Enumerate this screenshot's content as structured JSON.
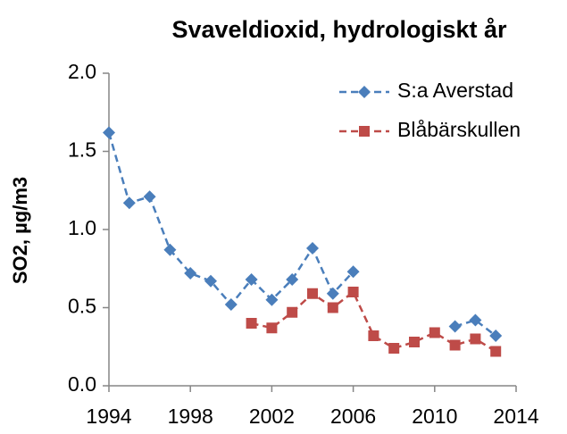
{
  "chart_data": {
    "type": "line",
    "title": "Svaveldioxid, hydrologiskt år",
    "y_label": "SO2, µg/m3",
    "x": [
      1994,
      1995,
      1996,
      1997,
      1998,
      1999,
      2000,
      2001,
      2002,
      2003,
      2004,
      2005,
      2006,
      2007,
      2008,
      2009,
      2010,
      2011,
      2012,
      2013
    ],
    "series": [
      {
        "name": "S:a Averstad",
        "color": "#4a7ebb",
        "marker": "diamond",
        "values": [
          1.62,
          1.17,
          1.21,
          0.87,
          0.72,
          0.67,
          0.52,
          0.68,
          0.55,
          0.68,
          0.88,
          0.59,
          0.73,
          null,
          null,
          null,
          null,
          0.38,
          0.42,
          0.32
        ]
      },
      {
        "name": "Blåbärskullen",
        "color": "#be4b48",
        "marker": "square",
        "values": [
          null,
          null,
          null,
          null,
          null,
          null,
          null,
          0.4,
          0.37,
          0.47,
          0.59,
          0.5,
          0.6,
          0.32,
          0.24,
          0.28,
          0.34,
          0.26,
          0.3,
          0.22
        ]
      }
    ],
    "xlim": [
      1994,
      2014
    ],
    "xticks": [
      1994,
      1998,
      2002,
      2006,
      2010,
      2014
    ],
    "ylim": [
      0,
      2.0
    ],
    "yticks": [
      {
        "value": 0,
        "label": "0.0"
      },
      0.5,
      {
        "value": 1,
        "label": "1.0"
      },
      1.5,
      {
        "value": 2,
        "label": "2.0"
      }
    ],
    "legend": "upper right",
    "grid": false
  }
}
